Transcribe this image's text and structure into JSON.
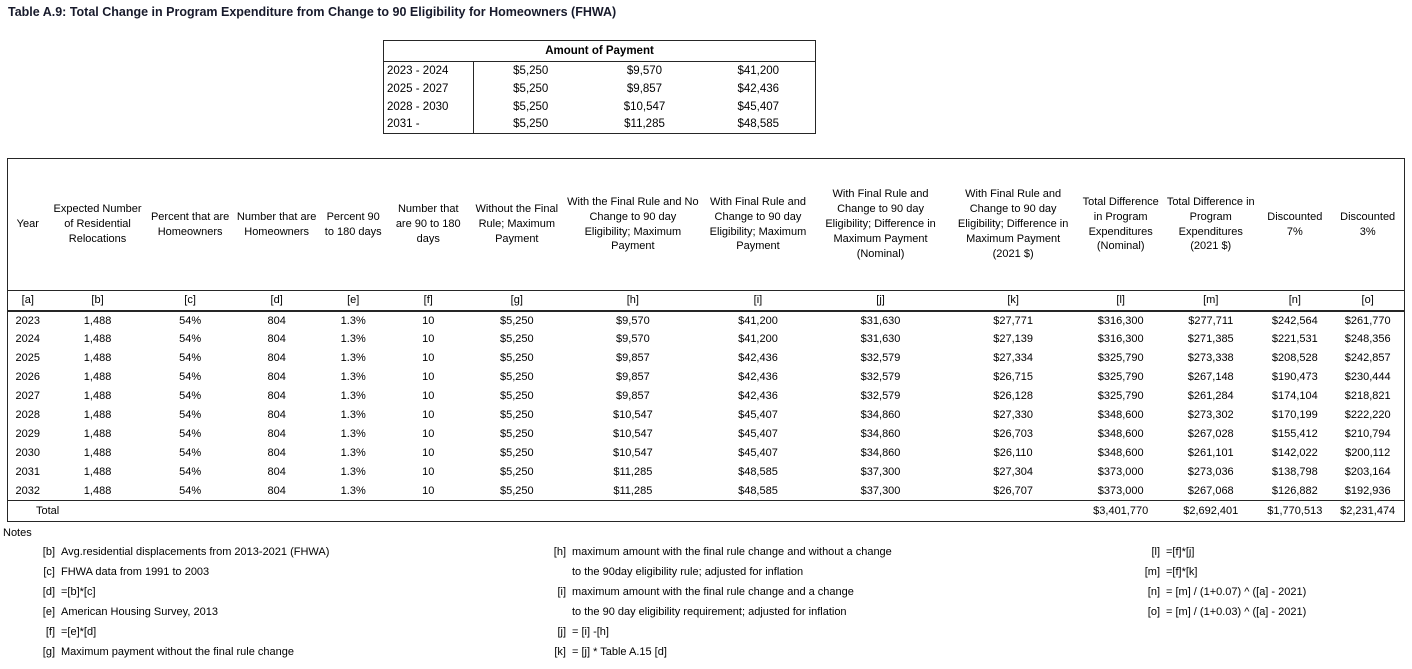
{
  "title": "Table A.9: Total Change in Program Expenditure from Change to 90 Eligibility for Homeowners (FHWA)",
  "payment_table": {
    "header": "Amount of Payment",
    "rows": [
      {
        "period": "2023 - 2024",
        "values": [
          "$5,250",
          "$9,570",
          "$41,200"
        ]
      },
      {
        "period": "2025 - 2027",
        "values": [
          "$5,250",
          "$9,857",
          "$42,436"
        ]
      },
      {
        "period": "2028 - 2030",
        "values": [
          "$5,250",
          "$10,547",
          "$45,407"
        ]
      },
      {
        "period": "2031 -",
        "values": [
          "$5,250",
          "$11,285",
          "$48,585"
        ]
      }
    ]
  },
  "main_table": {
    "columns": [
      {
        "id": "[a]",
        "label": "Year"
      },
      {
        "id": "[b]",
        "label": "Expected Number of Residential Relocations"
      },
      {
        "id": "[c]",
        "label": "Percent that are Homeowners"
      },
      {
        "id": "[d]",
        "label": "Number that are Homeowners"
      },
      {
        "id": "[e]",
        "label": "Percent 90 to 180 days"
      },
      {
        "id": "[f]",
        "label": "Number that are 90 to 180 days"
      },
      {
        "id": "[g]",
        "label": "Without the Final Rule; Maximum Payment"
      },
      {
        "id": "[h]",
        "label": "With the Final Rule and No Change to 90 day Eligibility; Maximum Payment"
      },
      {
        "id": "[i]",
        "label": "With Final Rule and Change to 90 day Eligibility; Maximum Payment"
      },
      {
        "id": "[j]",
        "label": "With Final Rule and Change to 90 day Eligibility; Difference in Maximum Payment (Nominal)"
      },
      {
        "id": "[k]",
        "label": "With Final Rule and Change to 90 day Eligibility; Difference in Maximum Payment (2021 $)"
      },
      {
        "id": "[l]",
        "label": "Total Difference in Program Expenditures (Nominal)"
      },
      {
        "id": "[m]",
        "label": "Total Difference in Program Expenditures (2021 $)"
      },
      {
        "id": "[n]",
        "label": "Discounted 7%"
      },
      {
        "id": "[o]",
        "label": "Discounted 3%"
      }
    ],
    "rows": [
      [
        "2023",
        "1,488",
        "54%",
        "804",
        "1.3%",
        "10",
        "$5,250",
        "$9,570",
        "$41,200",
        "$31,630",
        "$27,771",
        "$316,300",
        "$277,711",
        "$242,564",
        "$261,770"
      ],
      [
        "2024",
        "1,488",
        "54%",
        "804",
        "1.3%",
        "10",
        "$5,250",
        "$9,570",
        "$41,200",
        "$31,630",
        "$27,139",
        "$316,300",
        "$271,385",
        "$221,531",
        "$248,356"
      ],
      [
        "2025",
        "1,488",
        "54%",
        "804",
        "1.3%",
        "10",
        "$5,250",
        "$9,857",
        "$42,436",
        "$32,579",
        "$27,334",
        "$325,790",
        "$273,338",
        "$208,528",
        "$242,857"
      ],
      [
        "2026",
        "1,488",
        "54%",
        "804",
        "1.3%",
        "10",
        "$5,250",
        "$9,857",
        "$42,436",
        "$32,579",
        "$26,715",
        "$325,790",
        "$267,148",
        "$190,473",
        "$230,444"
      ],
      [
        "2027",
        "1,488",
        "54%",
        "804",
        "1.3%",
        "10",
        "$5,250",
        "$9,857",
        "$42,436",
        "$32,579",
        "$26,128",
        "$325,790",
        "$261,284",
        "$174,104",
        "$218,821"
      ],
      [
        "2028",
        "1,488",
        "54%",
        "804",
        "1.3%",
        "10",
        "$5,250",
        "$10,547",
        "$45,407",
        "$34,860",
        "$27,330",
        "$348,600",
        "$273,302",
        "$170,199",
        "$222,220"
      ],
      [
        "2029",
        "1,488",
        "54%",
        "804",
        "1.3%",
        "10",
        "$5,250",
        "$10,547",
        "$45,407",
        "$34,860",
        "$26,703",
        "$348,600",
        "$267,028",
        "$155,412",
        "$210,794"
      ],
      [
        "2030",
        "1,488",
        "54%",
        "804",
        "1.3%",
        "10",
        "$5,250",
        "$10,547",
        "$45,407",
        "$34,860",
        "$26,110",
        "$348,600",
        "$261,101",
        "$142,022",
        "$200,112"
      ],
      [
        "2031",
        "1,488",
        "54%",
        "804",
        "1.3%",
        "10",
        "$5,250",
        "$11,285",
        "$48,585",
        "$37,300",
        "$27,304",
        "$373,000",
        "$273,036",
        "$138,798",
        "$203,164"
      ],
      [
        "2032",
        "1,488",
        "54%",
        "804",
        "1.3%",
        "10",
        "$5,250",
        "$11,285",
        "$48,585",
        "$37,300",
        "$26,707",
        "$373,000",
        "$267,068",
        "$126,882",
        "$192,936"
      ]
    ],
    "total": {
      "label": "Total",
      "values": [
        "$3,401,770",
        "$2,692,401",
        "$1,770,513",
        "$2,231,474"
      ]
    }
  },
  "notes": {
    "heading": "Notes",
    "columns": [
      {
        "items": [
          {
            "id": "[b]",
            "lines": [
              "Avg.residential displacements from 2013-2021 (FHWA)"
            ]
          },
          {
            "id": "[c]",
            "lines": [
              "FHWA data from 1991 to 2003"
            ]
          },
          {
            "id": "[d]",
            "lines": [
              "=[b]*[c]"
            ]
          },
          {
            "id": "[e]",
            "lines": [
              "American Housing Survey, 2013"
            ]
          },
          {
            "id": "[f]",
            "lines": [
              "=[e]*[d]"
            ]
          },
          {
            "id": "[g]",
            "lines": [
              "Maximum payment without the final rule change"
            ]
          }
        ]
      },
      {
        "items": [
          {
            "id": "[h]",
            "lines": [
              "maximum amount with the final rule change and without a change",
              "to the 90day eligibility rule; adjusted for inflation"
            ]
          },
          {
            "id": "[i]",
            "lines": [
              "maximum amount with the final rule change and a change",
              "to the 90 day eligibility requirement; adjusted for inflation"
            ]
          },
          {
            "id": "[j]",
            "lines": [
              "= [i] -[h]"
            ]
          },
          {
            "id": "[k]",
            "lines": [
              "= [j] * Table A.15 [d]"
            ]
          }
        ]
      },
      {
        "items": [
          {
            "id": "[l]",
            "lines": [
              "=[f]*[j]"
            ]
          },
          {
            "id": "[m]",
            "lines": [
              "=[f]*[k]"
            ]
          },
          {
            "id": "[n]",
            "lines": [
              "= [m] / (1+0.07) ^ ([a] - 2021)"
            ]
          },
          {
            "id": "[o]",
            "lines": [
              "= [m] / (1+0.03) ^ ([a] - 2021)"
            ]
          }
        ]
      }
    ]
  }
}
